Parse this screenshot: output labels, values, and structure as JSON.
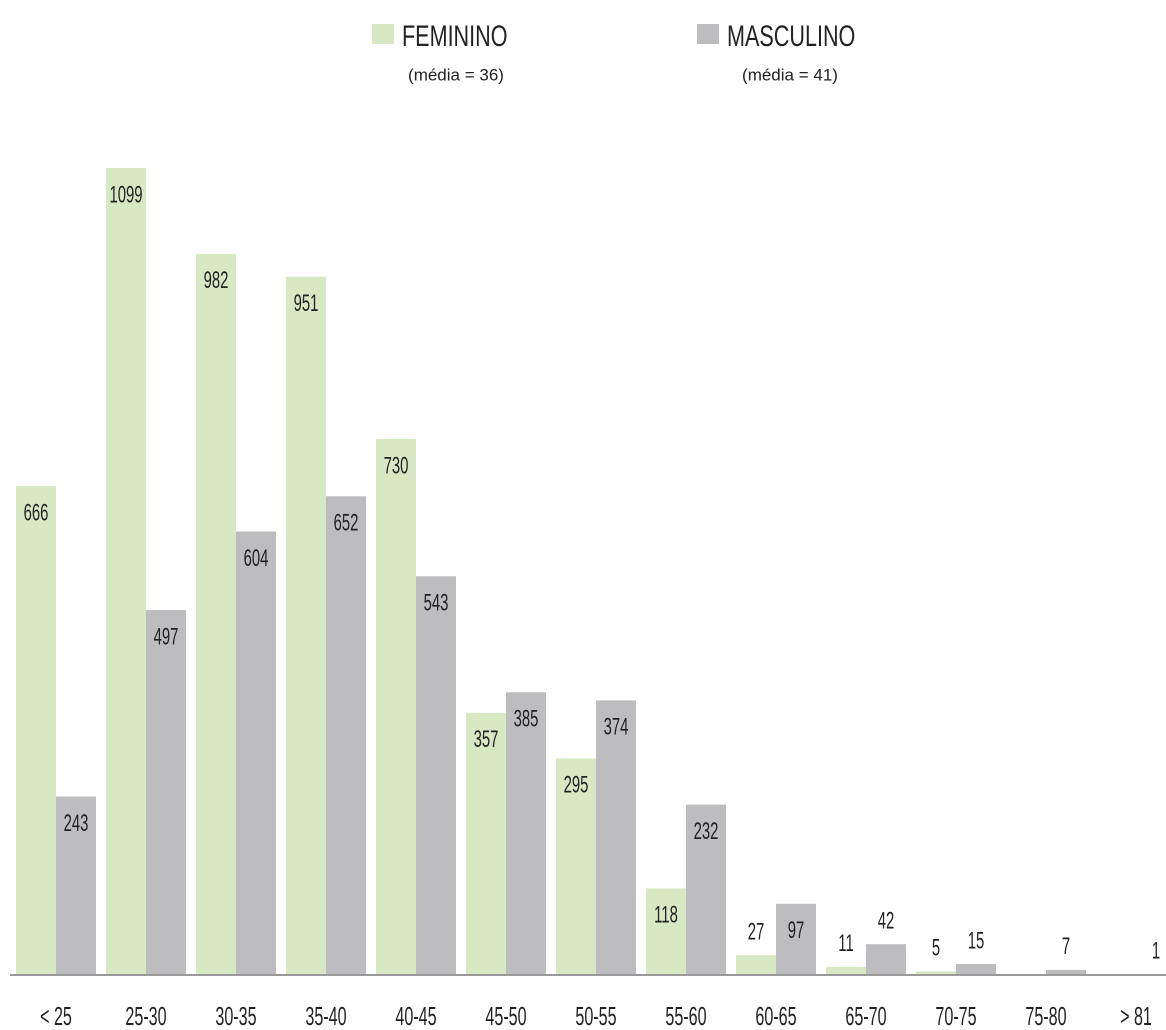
{
  "chart_data": {
    "type": "bar",
    "categories": [
      "< 25",
      "25-30",
      "30-35",
      "35-40",
      "40-45",
      "45-50",
      "50-55",
      "55-60",
      "60-65",
      "65-70",
      "70-75",
      "75-80",
      "> 81"
    ],
    "series": [
      {
        "name": "FEMININO",
        "note": "(média = 36)",
        "color": "#d9e8c4",
        "values": [
          666,
          1099,
          982,
          951,
          730,
          357,
          295,
          118,
          27,
          11,
          5,
          null,
          null
        ]
      },
      {
        "name": "MASCULINO",
        "note": "(média = 41)",
        "color": "#bdbdc0",
        "values": [
          243,
          497,
          604,
          652,
          543,
          385,
          374,
          232,
          97,
          42,
          15,
          7,
          1
        ]
      }
    ],
    "legend": "top"
  }
}
